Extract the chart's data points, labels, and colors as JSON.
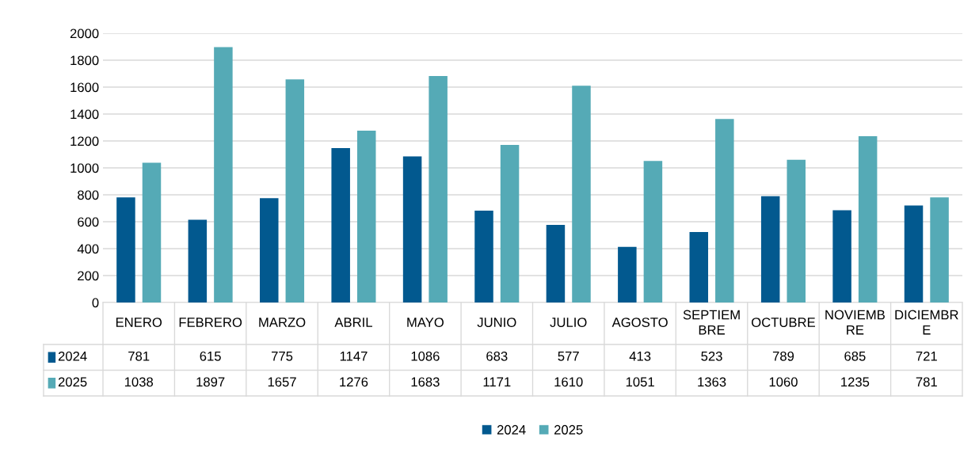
{
  "chart_data": {
    "type": "bar",
    "categories": [
      "ENERO",
      "FEBRERO",
      "MARZO",
      "ABRIL",
      "MAYO",
      "JUNIO",
      "JULIO",
      "AGOSTO",
      "SEPTIEMBRE",
      "OCTUBRE",
      "NOVIEMBRE",
      "DICIEMBRE"
    ],
    "series": [
      {
        "name": "2024",
        "color": "#02598f",
        "values": [
          781,
          615,
          775,
          1147,
          1086,
          683,
          577,
          413,
          523,
          789,
          685,
          721
        ]
      },
      {
        "name": "2025",
        "color": "#55aab6",
        "values": [
          1038,
          1897,
          1657,
          1276,
          1683,
          1171,
          1610,
          1051,
          1363,
          1060,
          1235,
          781
        ]
      }
    ],
    "ylim": [
      0,
      2000
    ],
    "yticks": [
      0,
      200,
      400,
      600,
      800,
      1000,
      1200,
      1400,
      1600,
      1800,
      2000
    ],
    "grid": "y",
    "legend": "bottom",
    "data_labels": true
  }
}
